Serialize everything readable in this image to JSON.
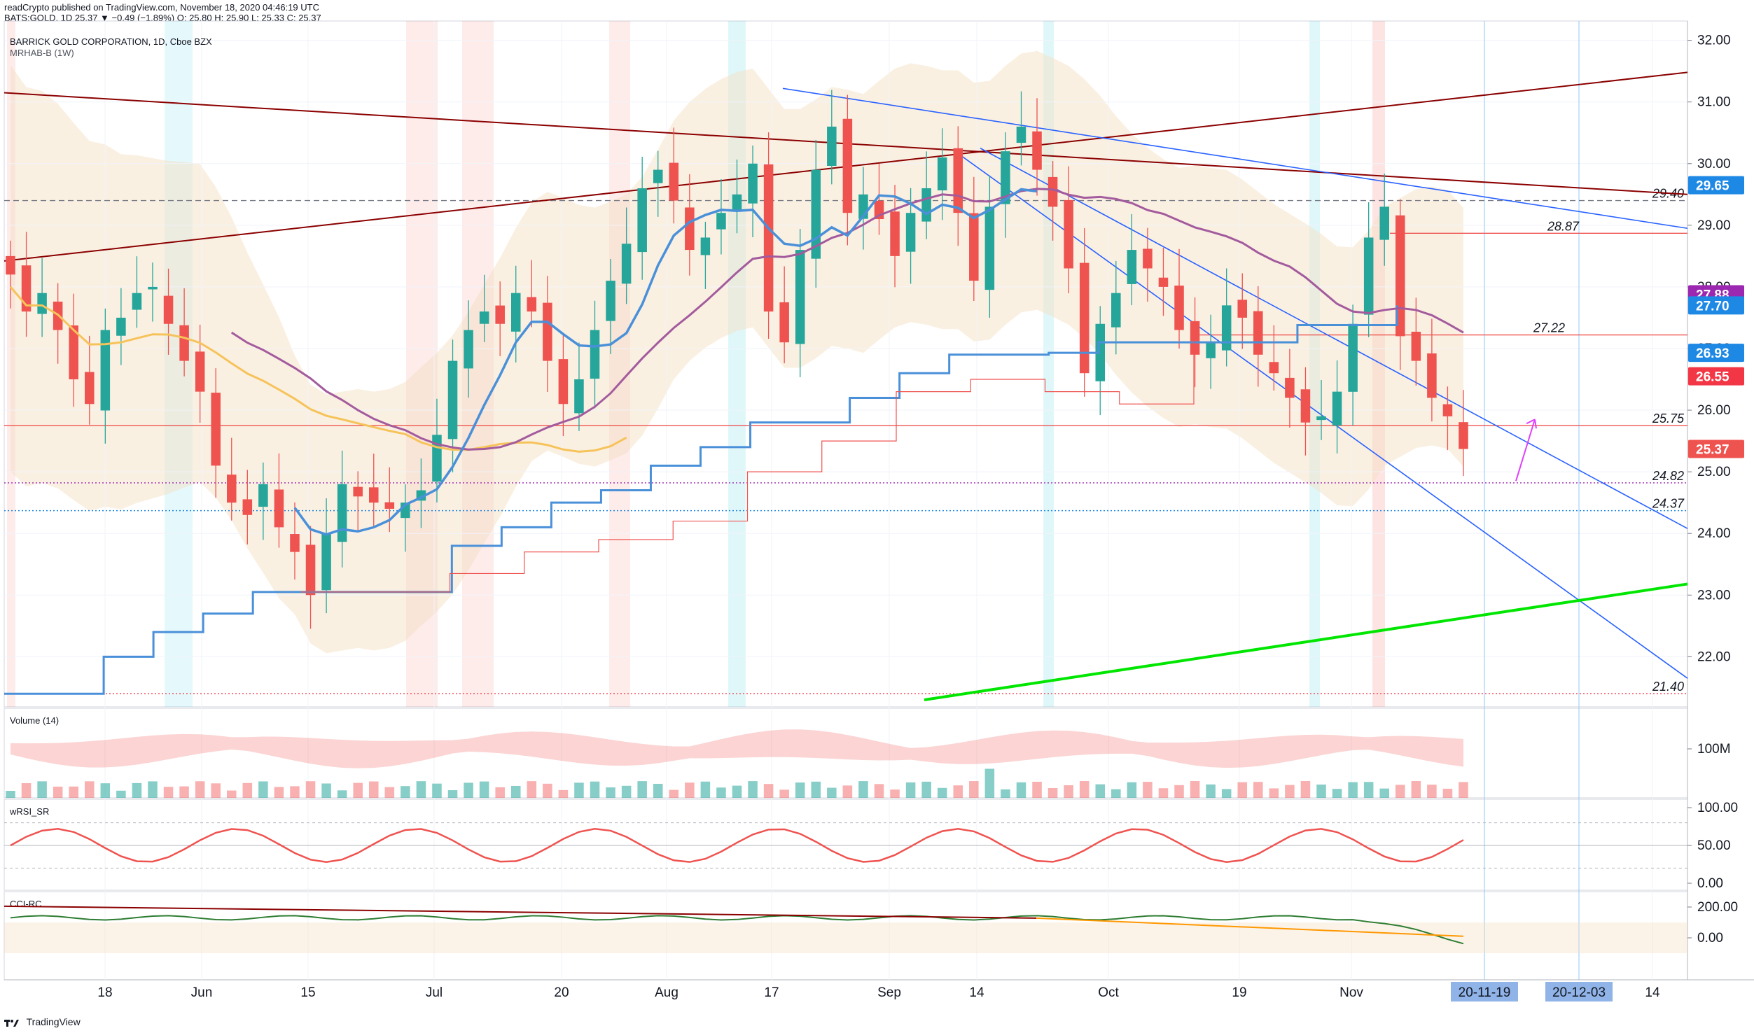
{
  "header": {
    "publisher": "readCrypto published on TradingView.com, November 18, 2020 04:46:19 UTC",
    "ticker_line": "BATS:GOLD, 1D 25.37 ▼ −0.49 (−1.89%) O: 25.80 H: 25.90 L: 25.33 C: 25.37"
  },
  "legend": {
    "symbol": "BARRICK GOLD CORPORATION, 1D, Cboe BZX",
    "indicator": "MRHAB-B (1W)"
  },
  "panes": {
    "volume": "Volume (14)",
    "wrsi": "wRSI_SR",
    "cci": "CCI-RC"
  },
  "footer": {
    "brand": "TradingView"
  },
  "colors": {
    "up": "#26a69a",
    "down": "#ef5350",
    "trend_dark": "#8b0000",
    "trend_blue": "#2962ff",
    "support_green": "#00e600",
    "label_purple": "#9c27b0",
    "label_blue": "#1e88e5",
    "label_red": "#f23645"
  },
  "chart_data": {
    "type": "candlestick",
    "title": "BARRICK GOLD CORPORATION, 1D, Cboe BZX",
    "x_ticks": [
      "18",
      "Jun",
      "15",
      "Jul",
      "20",
      "Aug",
      "17",
      "Sep",
      "14",
      "Oct",
      "19",
      "Nov",
      "14"
    ],
    "date_markers": [
      "20-11-19",
      "20-12-03"
    ],
    "ylim": [
      21.3,
      32.2
    ],
    "y_ticks": [
      22.0,
      23.0,
      24.0,
      25.0,
      26.0,
      27.0,
      28.0,
      29.0,
      30.0,
      31.0,
      32.0
    ],
    "y_tick_labels": [
      "22.00",
      "23.00",
      "24.00",
      "25.00",
      "26.00",
      "27.00",
      "28.00",
      "29.00",
      "30.00",
      "31.00",
      "32.00"
    ],
    "price_badges": [
      {
        "value": 29.65,
        "label": "29.65",
        "color": "#1e88e5"
      },
      {
        "value": 27.88,
        "label": "27.88",
        "color": "#9c27b0"
      },
      {
        "value": 27.7,
        "label": "27.70",
        "color": "#1e88e5"
      },
      {
        "value": 26.93,
        "label": "26.93",
        "color": "#1e88e5"
      },
      {
        "value": 26.55,
        "label": "26.55",
        "color": "#f23645"
      },
      {
        "value": 25.37,
        "label": "25.37",
        "color": "#ef5350"
      }
    ],
    "level_lines": [
      {
        "value": 29.4,
        "label": "29.40",
        "style": "dashed",
        "color": "#787b86"
      },
      {
        "value": 28.87,
        "label": "28.87",
        "style": "solid",
        "color": "#ef5350"
      },
      {
        "value": 27.22,
        "label": "27.22",
        "style": "solid",
        "color": "#ef5350"
      },
      {
        "value": 25.75,
        "label": "25.75",
        "style": "solid",
        "color": "#ef5350"
      },
      {
        "value": 24.82,
        "label": "24.82",
        "style": "dotted",
        "color": "#9c27b0"
      },
      {
        "value": 24.37,
        "label": "24.37",
        "style": "dotted",
        "color": "#1e88e5"
      },
      {
        "value": 21.4,
        "label": "21.40",
        "style": "dotted",
        "color": "#f23645"
      }
    ],
    "close_series_approx": [
      28.2,
      27.6,
      27.9,
      27.3,
      26.5,
      26.1,
      27.3,
      27.5,
      27.9,
      28.0,
      27.4,
      26.8,
      26.3,
      25.1,
      24.5,
      24.3,
      24.8,
      24.1,
      23.7,
      23.0,
      24.0,
      24.8,
      24.6,
      24.5,
      24.4,
      24.5,
      24.7,
      25.6,
      26.8,
      27.3,
      27.6,
      27.4,
      27.9,
      27.6,
      26.8,
      26.1,
      26.5,
      27.3,
      28.1,
      28.7,
      29.6,
      29.9,
      29.4,
      28.6,
      28.8,
      29.2,
      29.5,
      30.0,
      27.6,
      27.1,
      28.6,
      29.9,
      30.6,
      29.2,
      29.5,
      29.1,
      28.5,
      29.2,
      29.6,
      30.1,
      29.2,
      28.1,
      29.3,
      30.2,
      30.6,
      29.9,
      29.3,
      28.3,
      26.6,
      27.4,
      27.9,
      28.6,
      28.3,
      28.0,
      27.3,
      26.9,
      27.1,
      27.7,
      27.5,
      26.9,
      26.6,
      26.2,
      25.8,
      25.9,
      26.3,
      27.4,
      28.8,
      29.3,
      27.2,
      26.8,
      26.2,
      25.9,
      25.37
    ],
    "series": [
      {
        "name": "BARRICK GOLD CORPORATION",
        "kind": "candles"
      }
    ]
  }
}
